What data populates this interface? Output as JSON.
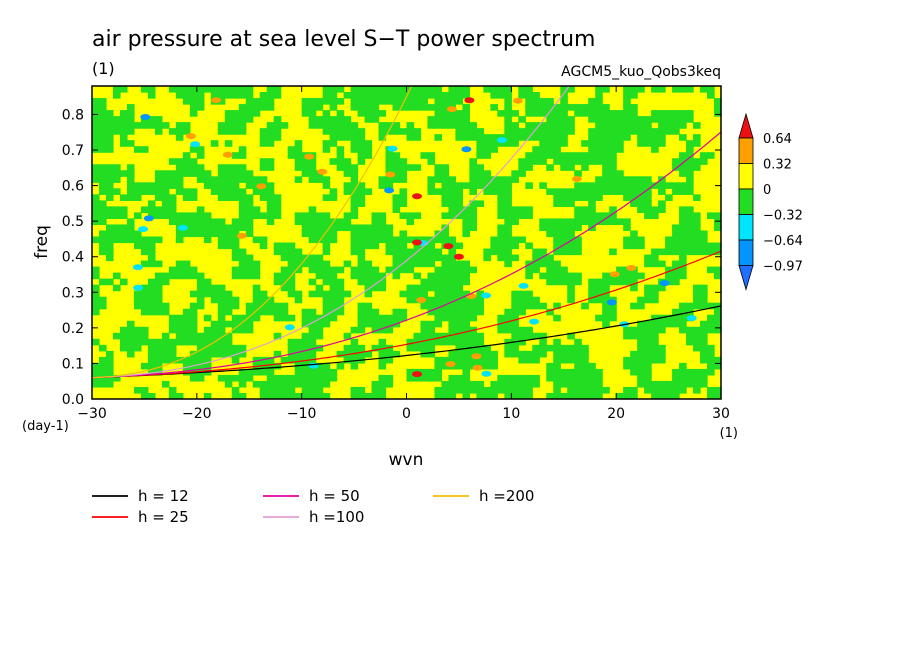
{
  "chart_data": {
    "type": "heatmap",
    "title": "air pressure at sea level S−T power spectrum",
    "subtitle": "(1)",
    "run_label": "AGCM5_kuo_Qobs3keq",
    "xlabel": "wvn",
    "xunit": "(1)",
    "ylabel": "freq",
    "yunit": "(day-1)",
    "xlim": [
      -30,
      30
    ],
    "ylim": [
      0,
      0.88
    ],
    "xticks": [
      -30,
      -20,
      -10,
      0,
      10,
      20,
      30
    ],
    "xtick_labels": [
      "−30",
      "−20",
      "−10",
      "0",
      "10",
      "20",
      "30"
    ],
    "yticks": [
      0,
      0.1,
      0.2,
      0.3,
      0.4,
      0.5,
      0.6,
      0.7,
      0.8
    ],
    "ytick_labels": [
      "0.0",
      "0.1",
      "0.2",
      "0.3",
      "0.4",
      "0.5",
      "0.6",
      "0.7",
      "0.8"
    ],
    "colorbar": {
      "levels": [
        -0.97,
        -0.64,
        -0.32,
        0,
        0.32,
        0.64
      ],
      "labels": [
        "−0.97",
        "−0.64",
        "−0.32",
        "0",
        "0.32",
        "0.64"
      ],
      "colors": [
        "#0095ff",
        "#00e5ff",
        "#22dd22",
        "#ffff00",
        "#ffa000",
        "#ee1111"
      ],
      "low_arrow_color": "#1e6eff",
      "high_arrow_color": "#ee1111"
    },
    "field_note": "noisy field, mostly between -0.32 and 0.32, with positive maxima along h=50 / h=100 curves",
    "series": [
      {
        "name": "h = 12",
        "label": "h = 12",
        "h": 12,
        "color": "#000000"
      },
      {
        "name": "h = 25",
        "label": "h = 25",
        "h": 25,
        "color": "#ff0000"
      },
      {
        "name": "h = 50",
        "label": "h = 50",
        "h": 50,
        "color": "#e000a0"
      },
      {
        "name": "h =100",
        "label": "h =100",
        "h": 100,
        "color": "#e0a0d0"
      },
      {
        "name": "h =200",
        "label": "h =200",
        "h": 200,
        "color": "#f0c000"
      }
    ]
  }
}
